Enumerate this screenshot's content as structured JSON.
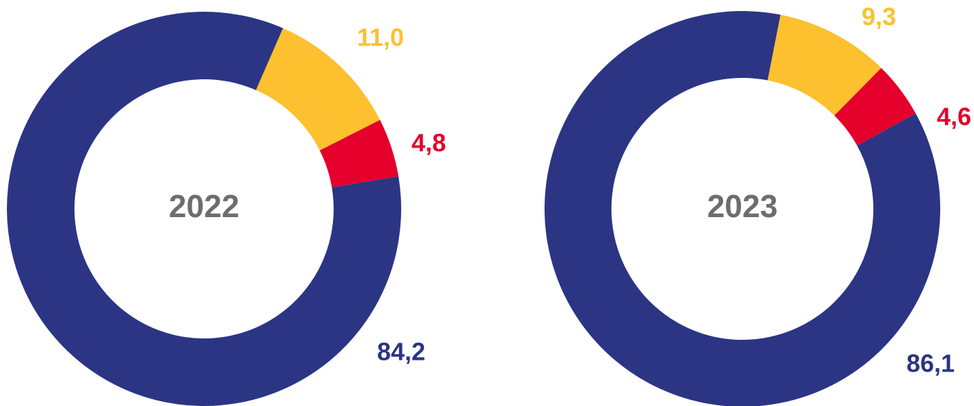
{
  "chart_data": [
    {
      "type": "donut",
      "title": "2022",
      "values": [
        11.0,
        4.8,
        84.2
      ],
      "value_labels": [
        "11,0",
        "4,8",
        "84,2"
      ],
      "colors": [
        "#fdc02f",
        "#e4002b",
        "#2b3584"
      ]
    },
    {
      "type": "donut",
      "title": "2023",
      "values": [
        9.3,
        4.6,
        86.1
      ],
      "value_labels": [
        "9,3",
        "4,6",
        "86,1"
      ],
      "colors": [
        "#fdc02f",
        "#e4002b",
        "#2b3584"
      ]
    }
  ]
}
